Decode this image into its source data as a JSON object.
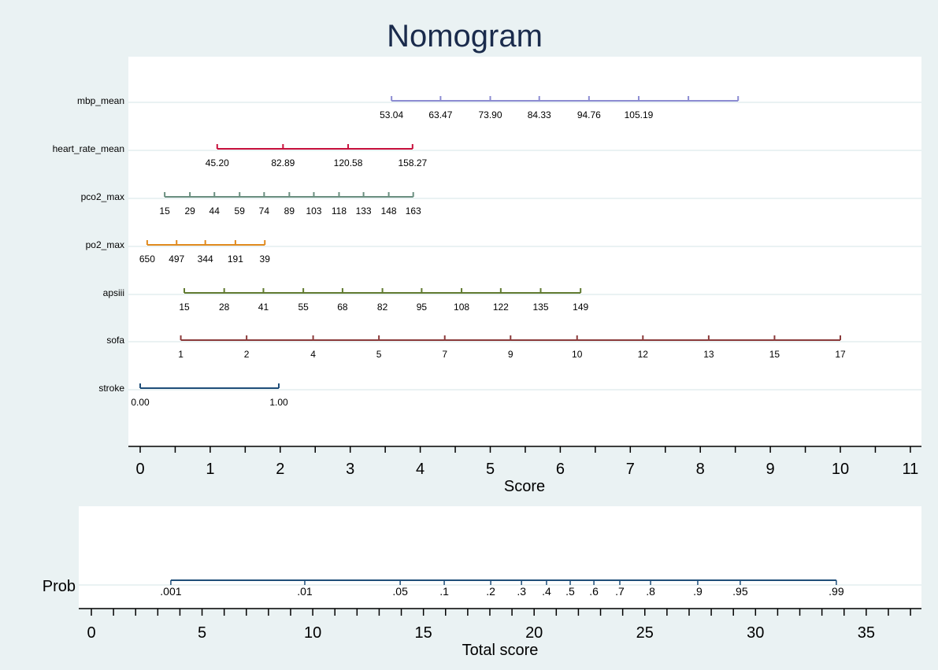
{
  "chart_data": {
    "type": "nomogram",
    "title": "Nomogram",
    "background": "#eaf2f3",
    "score_axis": {
      "label": "Score",
      "range": [
        0,
        11
      ],
      "ticks": [
        0,
        1,
        2,
        3,
        4,
        5,
        6,
        7,
        8,
        9,
        10,
        11
      ],
      "minor_step": 0.5
    },
    "variables": [
      {
        "name": "mbp_mean",
        "color": "#8c8cd2",
        "ticks": [
          {
            "score": 3.59,
            "label": "53.04"
          },
          {
            "score": 4.29,
            "label": "63.47"
          },
          {
            "score": 5.0,
            "label": "73.90"
          },
          {
            "score": 5.7,
            "label": "84.33"
          },
          {
            "score": 6.41,
            "label": "94.76"
          },
          {
            "score": 7.12,
            "label": "105.19"
          },
          {
            "score": 7.83,
            "label": ""
          },
          {
            "score": 8.54,
            "label": ""
          }
        ]
      },
      {
        "name": "heart_rate_mean",
        "color": "#c8103c",
        "ticks": [
          {
            "score": 1.1,
            "label": "45.20"
          },
          {
            "score": 2.04,
            "label": "82.89"
          },
          {
            "score": 2.97,
            "label": "120.58"
          },
          {
            "score": 3.89,
            "label": "158.27"
          }
        ]
      },
      {
        "name": "pco2_max",
        "color": "#6a8f80",
        "ticks": [
          {
            "score": 0.35,
            "label": "15"
          },
          {
            "score": 0.71,
            "label": "29"
          },
          {
            "score": 1.06,
            "label": "44"
          },
          {
            "score": 1.42,
            "label": "59"
          },
          {
            "score": 1.77,
            "label": "74"
          },
          {
            "score": 2.13,
            "label": "89"
          },
          {
            "score": 2.48,
            "label": "103"
          },
          {
            "score": 2.84,
            "label": "118"
          },
          {
            "score": 3.19,
            "label": "133"
          },
          {
            "score": 3.55,
            "label": "148"
          },
          {
            "score": 3.9,
            "label": "163"
          }
        ]
      },
      {
        "name": "po2_max",
        "color": "#e08a1e",
        "ticks": [
          {
            "score": 0.1,
            "label": "650"
          },
          {
            "score": 0.52,
            "label": "497"
          },
          {
            "score": 0.93,
            "label": "344"
          },
          {
            "score": 1.36,
            "label": "191"
          },
          {
            "score": 1.78,
            "label": "39"
          }
        ]
      },
      {
        "name": "apsiii",
        "color": "#607a30",
        "ticks": [
          {
            "score": 0.63,
            "label": "15"
          },
          {
            "score": 1.2,
            "label": "28"
          },
          {
            "score": 1.76,
            "label": "41"
          },
          {
            "score": 2.33,
            "label": "55"
          },
          {
            "score": 2.89,
            "label": "68"
          },
          {
            "score": 3.46,
            "label": "82"
          },
          {
            "score": 4.02,
            "label": "95"
          },
          {
            "score": 4.59,
            "label": "108"
          },
          {
            "score": 5.15,
            "label": "122"
          },
          {
            "score": 5.72,
            "label": "135"
          },
          {
            "score": 6.29,
            "label": "149"
          }
        ]
      },
      {
        "name": "sofa",
        "color": "#8b3a3a",
        "ticks": [
          {
            "score": 0.58,
            "label": "1"
          },
          {
            "score": 1.52,
            "label": "2"
          },
          {
            "score": 2.47,
            "label": "4"
          },
          {
            "score": 3.41,
            "label": "5"
          },
          {
            "score": 4.35,
            "label": "7"
          },
          {
            "score": 5.29,
            "label": "9"
          },
          {
            "score": 6.24,
            "label": "10"
          },
          {
            "score": 7.18,
            "label": "12"
          },
          {
            "score": 8.12,
            "label": "13"
          },
          {
            "score": 9.06,
            "label": "15"
          },
          {
            "score": 10.0,
            "label": "17"
          }
        ]
      },
      {
        "name": "stroke",
        "color": "#1f4e79",
        "ticks": [
          {
            "score": 0.0,
            "label": "0.00"
          },
          {
            "score": 1.98,
            "label": "1.00"
          }
        ]
      }
    ],
    "total_axis": {
      "label": "Total score",
      "range": [
        0,
        37.4
      ],
      "ticks": [
        0,
        5,
        10,
        15,
        20,
        25,
        30,
        35
      ],
      "minor_step": 1
    },
    "prob": {
      "name": "Prob",
      "color": "#1f4e79",
      "ticks": [
        {
          "score": 3.59,
          "label": ".001"
        },
        {
          "score": 9.64,
          "label": ".01"
        },
        {
          "score": 13.95,
          "label": ".05"
        },
        {
          "score": 15.94,
          "label": ".1"
        },
        {
          "score": 18.04,
          "label": ".2"
        },
        {
          "score": 19.43,
          "label": ".3"
        },
        {
          "score": 20.56,
          "label": ".4"
        },
        {
          "score": 21.63,
          "label": ".5"
        },
        {
          "score": 22.7,
          "label": ".6"
        },
        {
          "score": 23.87,
          "label": ".7"
        },
        {
          "score": 25.26,
          "label": ".8"
        },
        {
          "score": 27.39,
          "label": ".9"
        },
        {
          "score": 29.31,
          "label": ".95"
        },
        {
          "score": 33.65,
          "label": ".99"
        }
      ]
    }
  }
}
